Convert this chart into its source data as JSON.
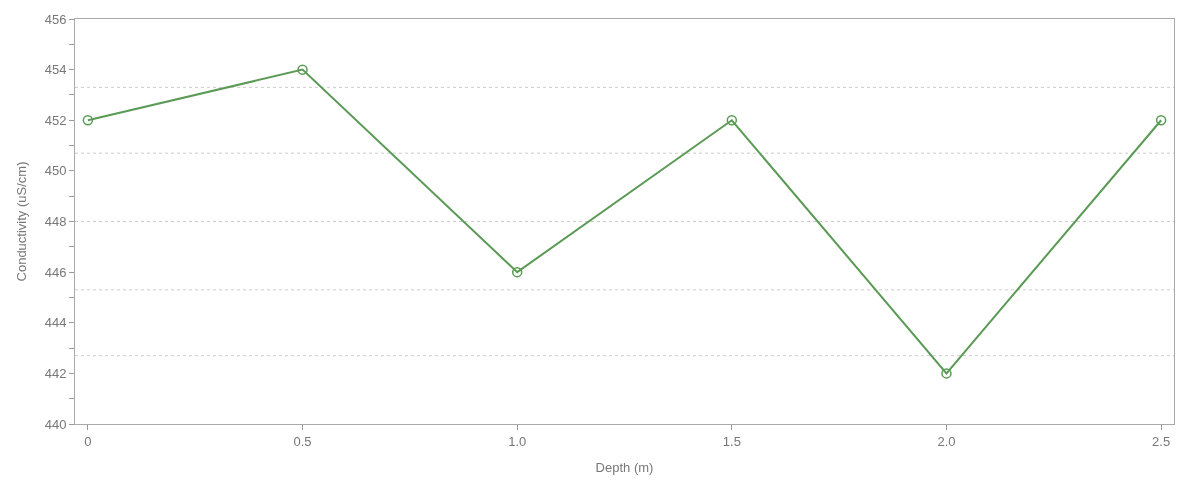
{
  "chart_data": {
    "type": "line",
    "xlabel": "Depth (m)",
    "ylabel": "Conductivity (uS/cm)",
    "x": [
      0,
      0.5,
      1.0,
      1.5,
      2.0,
      2.5
    ],
    "series": [
      {
        "color": "#5a9a55",
        "values": [
          452,
          454,
          446,
          452,
          442,
          452
        ]
      }
    ],
    "xlim": [
      -0.03,
      2.53
    ],
    "xticks": [
      0,
      0.5,
      {
        "value": 1,
        "label": "1.0"
      },
      1.5,
      {
        "value": 2,
        "label": "2.0"
      },
      2.5
    ],
    "ylim": [
      440,
      456
    ],
    "yticks": [
      440,
      {
        "value": 441,
        "label": null
      },
      442,
      {
        "value": 443,
        "label": null
      },
      444,
      {
        "value": 445,
        "label": null
      },
      446,
      {
        "value": 447,
        "label": null
      },
      448,
      {
        "value": 449,
        "label": null
      },
      450,
      {
        "value": 451,
        "label": null
      },
      452,
      {
        "value": 453,
        "label": null
      },
      454,
      {
        "value": 455,
        "label": null
      },
      456
    ],
    "ref_lines": [
      {
        "axis": "y",
        "value": 453.3,
        "color": "#cccccc",
        "line_style": "dotted"
      },
      {
        "axis": "y",
        "value": 450.7,
        "color": "#cccccc",
        "line_style": "dotted"
      },
      {
        "axis": "y",
        "value": 448,
        "color": "#cccccc",
        "line_style": "dotted"
      },
      {
        "axis": "y",
        "value": 445.3,
        "color": "#cccccc",
        "line_style": "dotted"
      },
      {
        "axis": "y",
        "value": 442.7,
        "color": "#cccccc",
        "line_style": "dotted"
      }
    ],
    "marker": "circle",
    "line_style": "solid"
  }
}
